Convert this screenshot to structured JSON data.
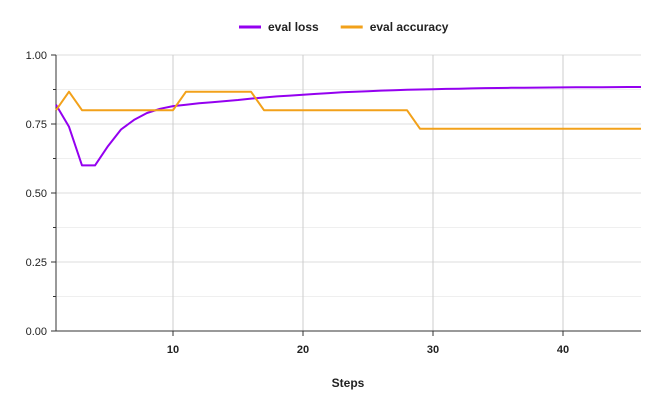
{
  "chart_data": {
    "type": "line",
    "xlabel": "Steps",
    "ylabel": "",
    "xlim": [
      1,
      46
    ],
    "ylim": [
      0,
      1
    ],
    "x_ticks": [
      10,
      20,
      30,
      40
    ],
    "x_tick_labels": [
      "10",
      "20",
      "30",
      "40"
    ],
    "y_ticks": [
      0,
      0.25,
      0.5,
      0.75,
      1.0
    ],
    "y_tick_labels": [
      "0.00",
      "0.25",
      "0.50",
      "0.75",
      "1.00"
    ],
    "grid": true,
    "legend_position": "top-center",
    "series": [
      {
        "name": "eval loss",
        "color": "#9400f0",
        "x": [
          1,
          2,
          3,
          4,
          5,
          6,
          7,
          8,
          9,
          10,
          11,
          12,
          13,
          14,
          15,
          16,
          17,
          18,
          19,
          20,
          21,
          22,
          23,
          24,
          25,
          26,
          27,
          28,
          29,
          30,
          31,
          32,
          33,
          34,
          35,
          36,
          37,
          38,
          39,
          40,
          41,
          42,
          43,
          44,
          45,
          46
        ],
        "values": [
          0.82,
          0.74,
          0.6,
          0.6,
          0.67,
          0.73,
          0.765,
          0.79,
          0.805,
          0.815,
          0.82,
          0.825,
          0.829,
          0.833,
          0.837,
          0.842,
          0.846,
          0.85,
          0.853,
          0.856,
          0.859,
          0.862,
          0.865,
          0.867,
          0.869,
          0.871,
          0.872,
          0.874,
          0.875,
          0.876,
          0.877,
          0.878,
          0.879,
          0.88,
          0.8805,
          0.881,
          0.8815,
          0.882,
          0.8823,
          0.8826,
          0.8829,
          0.8832,
          0.8835,
          0.8838,
          0.884,
          0.8842
        ]
      },
      {
        "name": "eval accuracy",
        "color": "#f2a11a",
        "x": [
          1,
          2,
          3,
          4,
          5,
          6,
          7,
          8,
          9,
          10,
          11,
          12,
          13,
          14,
          15,
          16,
          17,
          18,
          19,
          20,
          21,
          22,
          23,
          24,
          25,
          26,
          27,
          28,
          29,
          30,
          31,
          32,
          33,
          34,
          35,
          36,
          37,
          38,
          39,
          40,
          41,
          42,
          43,
          44,
          45,
          46
        ],
        "values": [
          0.8,
          0.867,
          0.8,
          0.8,
          0.8,
          0.8,
          0.8,
          0.8,
          0.8,
          0.8,
          0.867,
          0.867,
          0.867,
          0.867,
          0.867,
          0.867,
          0.8,
          0.8,
          0.8,
          0.8,
          0.8,
          0.8,
          0.8,
          0.8,
          0.8,
          0.8,
          0.8,
          0.8,
          0.733,
          0.733,
          0.733,
          0.733,
          0.733,
          0.733,
          0.733,
          0.733,
          0.733,
          0.733,
          0.733,
          0.733,
          0.733,
          0.733,
          0.733,
          0.733,
          0.733,
          0.733
        ]
      }
    ]
  }
}
